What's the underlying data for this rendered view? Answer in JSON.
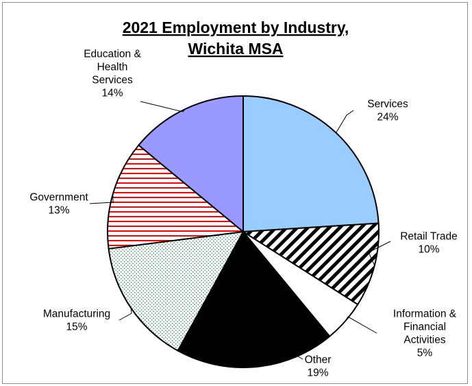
{
  "chart_data": {
    "type": "pie",
    "title_lines": [
      "2021 Employment by Industry,",
      "Wichita MSA"
    ],
    "slices": [
      {
        "label": "Services",
        "value": 24,
        "pct_label": "24%",
        "fill": "#99ccff",
        "pattern": "solid"
      },
      {
        "label": "Retail Trade",
        "value": 10,
        "pct_label": "10%",
        "fill": "#000000",
        "pattern": "diagonal-stripes"
      },
      {
        "label": "Information & Financial Activities",
        "value": 5,
        "pct_label": "5%",
        "fill": "#ffffff",
        "pattern": "solid"
      },
      {
        "label": "Other",
        "value": 19,
        "pct_label": "19%",
        "fill": "#000000",
        "pattern": "solid"
      },
      {
        "label": "Manufacturing",
        "value": 15,
        "pct_label": "15%",
        "fill": "#2e8b57",
        "pattern": "dotted"
      },
      {
        "label": "Government",
        "value": 13,
        "pct_label": "13%",
        "fill": "#ff0000",
        "pattern": "horizontal-stripes"
      },
      {
        "label": "Education & Health Services",
        "value": 14,
        "pct_label": "14%",
        "fill": "#9999ff",
        "pattern": "solid"
      }
    ],
    "label_lines": {
      "Services": [
        "Services",
        "24%"
      ],
      "Retail Trade": [
        "Retail Trade",
        "10%"
      ],
      "Information & Financial Activities": [
        "Information &",
        "Financial",
        "Activities",
        "5%"
      ],
      "Other": [
        "Other",
        "19%"
      ],
      "Manufacturing": [
        "Manufacturing",
        "15%"
      ],
      "Government": [
        "Government",
        "13%"
      ],
      "Education & Health Services": [
        "Education &",
        "Health",
        "Services",
        "14%"
      ]
    },
    "legend": "none"
  }
}
